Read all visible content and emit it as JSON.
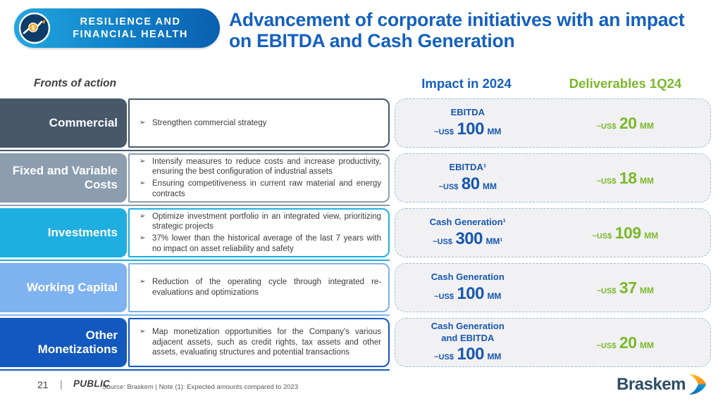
{
  "colors": {
    "primary_blue": "#1460c0",
    "value_blue": "#1757b0",
    "green": "#7ab82a"
  },
  "badge": {
    "line1": "RESILIENCE AND",
    "line2": "FINANCIAL HEALTH",
    "icon": "dollar-growth-chart-icon"
  },
  "title": "Advancement of corporate initiatives with an impact on EBITDA and Cash Generation",
  "columns": {
    "fronts": "Fronts of action",
    "impact": "Impact in 2024",
    "deliverables": "Deliverables 1Q24"
  },
  "rows": [
    {
      "label": "Commercial",
      "color": "#47586b",
      "bullets": [
        "Strengthen commercial strategy"
      ],
      "impact_label": "EBITDA",
      "impact_prefix": "~US$",
      "impact_value": "100",
      "impact_unit": "MM",
      "deliverable_prefix": "~US$",
      "deliverable_value": "20",
      "deliverable_unit": "MM"
    },
    {
      "label": "Fixed and Variable Costs",
      "color": "#8c9db0",
      "bullets": [
        "Intensify measures to reduce costs and increase productivity, ensuring the best configuration of industrial assets",
        "Ensuring competitiveness in current raw material and energy contracts"
      ],
      "impact_label": "EBITDA¹",
      "impact_prefix": "~US$",
      "impact_value": "80",
      "impact_unit": "MM",
      "deliverable_prefix": "~US$",
      "deliverable_value": "18",
      "deliverable_unit": "MM"
    },
    {
      "label": "Investments",
      "color": "#1faee0",
      "bullets": [
        "Optimize investment portfolio in an integrated view, prioritizing strategic projects",
        "37% lower than the historical average of the last 7 years with no impact on asset reliability and safety"
      ],
      "impact_label": "Cash Generation¹",
      "impact_prefix": "~US$",
      "impact_value": "300",
      "impact_unit": "MM¹",
      "deliverable_prefix": "~US$",
      "deliverable_value": "109",
      "deliverable_unit": "MM"
    },
    {
      "label": "Working Capital",
      "color": "#7fb2f0",
      "bullets": [
        "Reduction of the operating cycle through integrated re-evaluations and optimizations"
      ],
      "impact_label": "Cash Generation",
      "impact_prefix": "~US$",
      "impact_value": "100",
      "impact_unit": "MM",
      "deliverable_prefix": "~US$",
      "deliverable_value": "37",
      "deliverable_unit": "MM"
    },
    {
      "label": "Other Monetizations",
      "color": "#1258be",
      "bullets": [
        "Map monetization opportunities for the Company's various adjacent assets, such as credit rights, tax assets and other assets, evaluating structures and potential transactions"
      ],
      "impact_label": "Cash Generation\nand EBITDA",
      "impact_prefix": "~US$",
      "impact_value": "100",
      "impact_unit": "MM",
      "deliverable_prefix": "~US$",
      "deliverable_value": "20",
      "deliverable_unit": "MM"
    }
  ],
  "footer": {
    "page": "21",
    "separator": "|",
    "classification": "PUBLIC",
    "source": "Source: Braskem | Note (1): Expected amounts compared to 2023",
    "logo_text": "Braskem",
    "logo_icon": "braskem-swoosh-icon"
  }
}
